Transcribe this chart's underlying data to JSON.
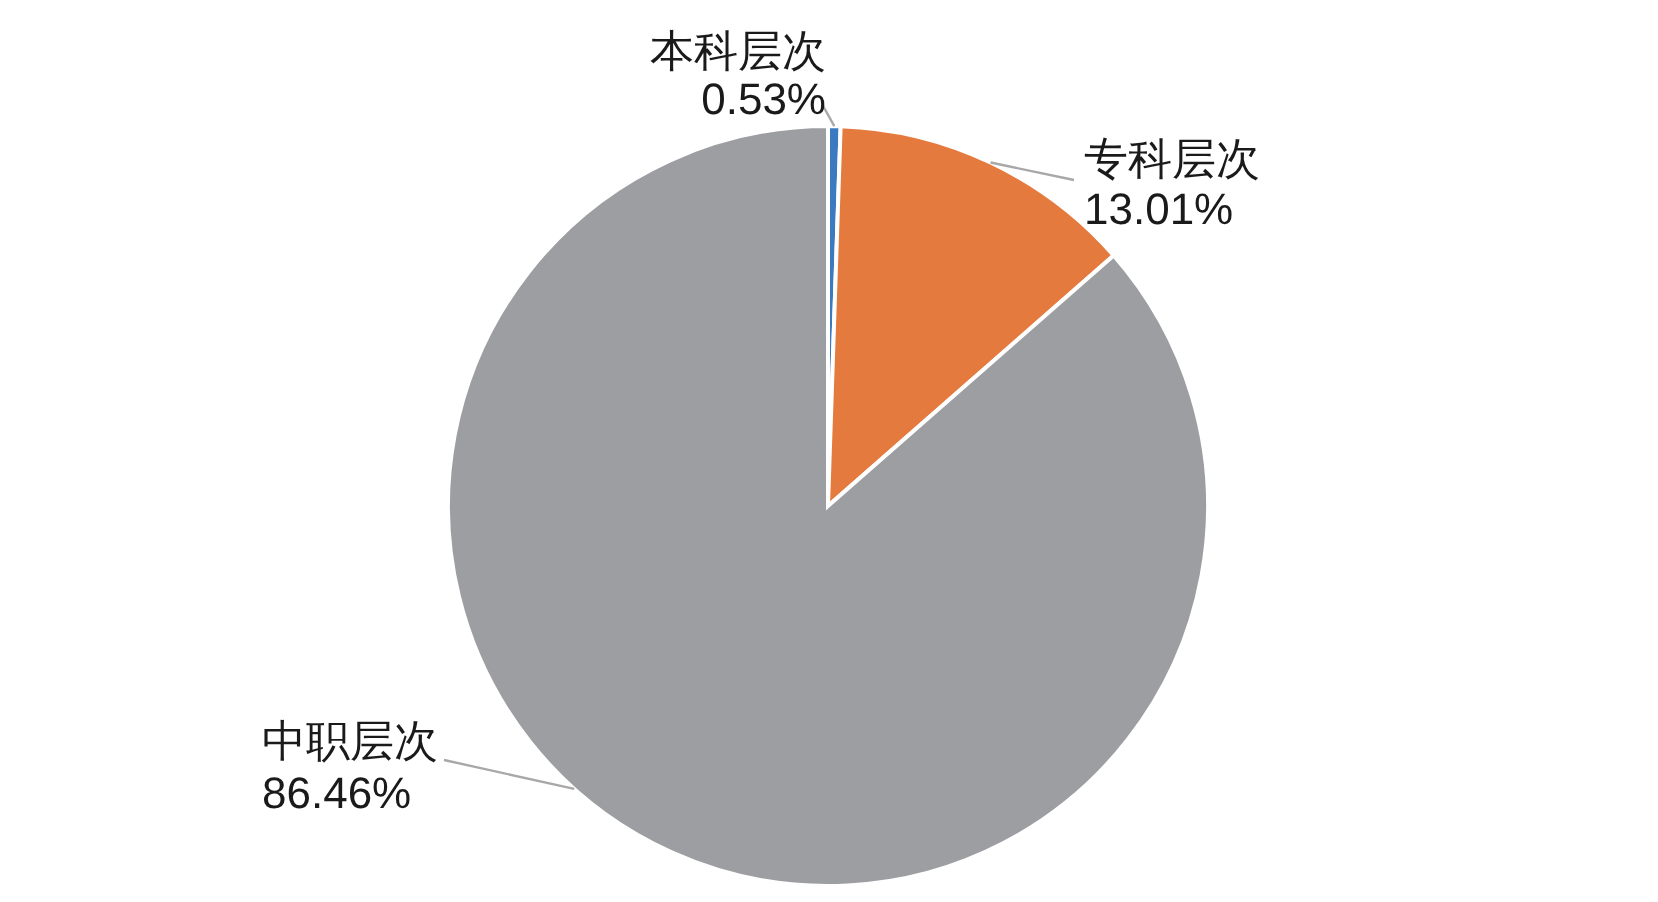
{
  "chart_data": {
    "type": "pie",
    "categories": [
      "本科层次",
      "专科层次",
      "中职层次"
    ],
    "values": [
      0.53,
      13.01,
      86.46
    ],
    "colors": [
      "#3b7ac0",
      "#e57a3e",
      "#9d9ea2"
    ],
    "value_labels": [
      "0.53%",
      "13.01%",
      "86.46%"
    ]
  }
}
